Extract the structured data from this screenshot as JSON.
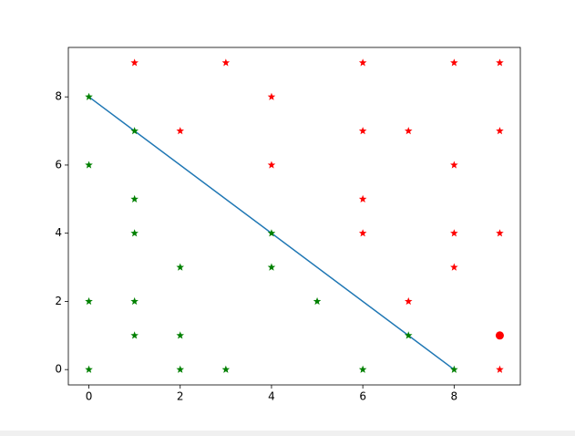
{
  "chart_data": {
    "type": "scatter",
    "xlim": [
      -0.45,
      9.45
    ],
    "ylim": [
      -0.45,
      9.45
    ],
    "xticks": [
      0,
      2,
      4,
      6,
      8
    ],
    "yticks": [
      0,
      2,
      4,
      6,
      8
    ],
    "series": [
      {
        "kind": "scatter",
        "marker": "star",
        "color": "#ff0000",
        "x": [
          1,
          3,
          6,
          8,
          9,
          4,
          2,
          6,
          7,
          9,
          4,
          8,
          6,
          6,
          8,
          9,
          8,
          7,
          9
        ],
        "values": [
          9,
          9,
          9,
          9,
          9,
          8,
          7,
          7,
          7,
          7,
          6,
          6,
          5,
          4,
          4,
          4,
          3,
          2,
          0
        ]
      },
      {
        "kind": "scatter",
        "marker": "star",
        "color": "#008000",
        "x": [
          0,
          1,
          0,
          1,
          1,
          4,
          2,
          4,
          0,
          1,
          5,
          1,
          2,
          7,
          0,
          2,
          3,
          6,
          8
        ],
        "values": [
          8,
          7,
          6,
          5,
          4,
          4,
          3,
          3,
          2,
          2,
          2,
          1,
          1,
          1,
          0,
          0,
          0,
          0,
          0
        ]
      },
      {
        "kind": "scatter",
        "marker": "circle",
        "color": "#ff0000",
        "x": [
          9
        ],
        "values": [
          1
        ]
      },
      {
        "kind": "line",
        "color": "#1f77b4",
        "x": [
          0,
          8
        ],
        "values": [
          8,
          0
        ]
      }
    ]
  }
}
